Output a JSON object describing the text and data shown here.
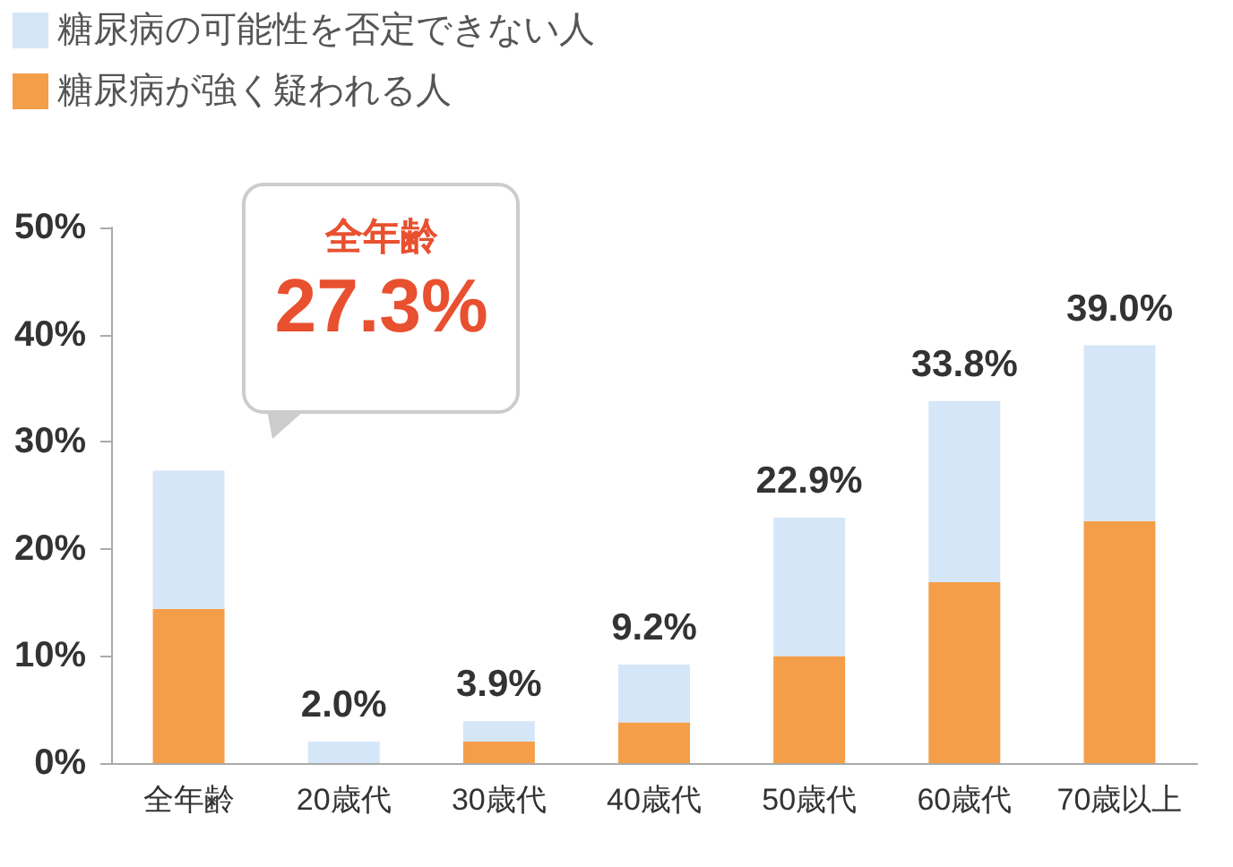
{
  "chart_data": {
    "type": "bar",
    "stacked": true,
    "categories": [
      "全年齢",
      "20歳代",
      "30歳代",
      "40歳代",
      "50歳代",
      "60歳代",
      "70歳以上"
    ],
    "series": [
      {
        "name": "糖尿病が強く疑われる人",
        "color": "#f59e4a",
        "values": [
          14.4,
          0,
          2.0,
          3.8,
          10.0,
          16.9,
          22.6
        ]
      },
      {
        "name": "糖尿病の可能性を否定できない人",
        "color": "#d5e6f8",
        "values": [
          12.9,
          2.0,
          1.9,
          5.4,
          12.9,
          16.9,
          16.4
        ]
      }
    ],
    "ylim": [
      0,
      50
    ],
    "yticks": [
      {
        "value": 0,
        "label": "0%"
      },
      {
        "value": 10,
        "label": "10%"
      },
      {
        "value": 20,
        "label": "20%"
      },
      {
        "value": 30,
        "label": "30%"
      },
      {
        "value": 40,
        "label": "40%"
      },
      {
        "value": 50,
        "label": "50%"
      }
    ],
    "totals": [
      null,
      "2.0%",
      "3.9%",
      "9.2%",
      "22.9%",
      "33.8%",
      "39.0%"
    ],
    "annotations": [
      "全年齢",
      "27.3%"
    ],
    "legend": "top left"
  }
}
